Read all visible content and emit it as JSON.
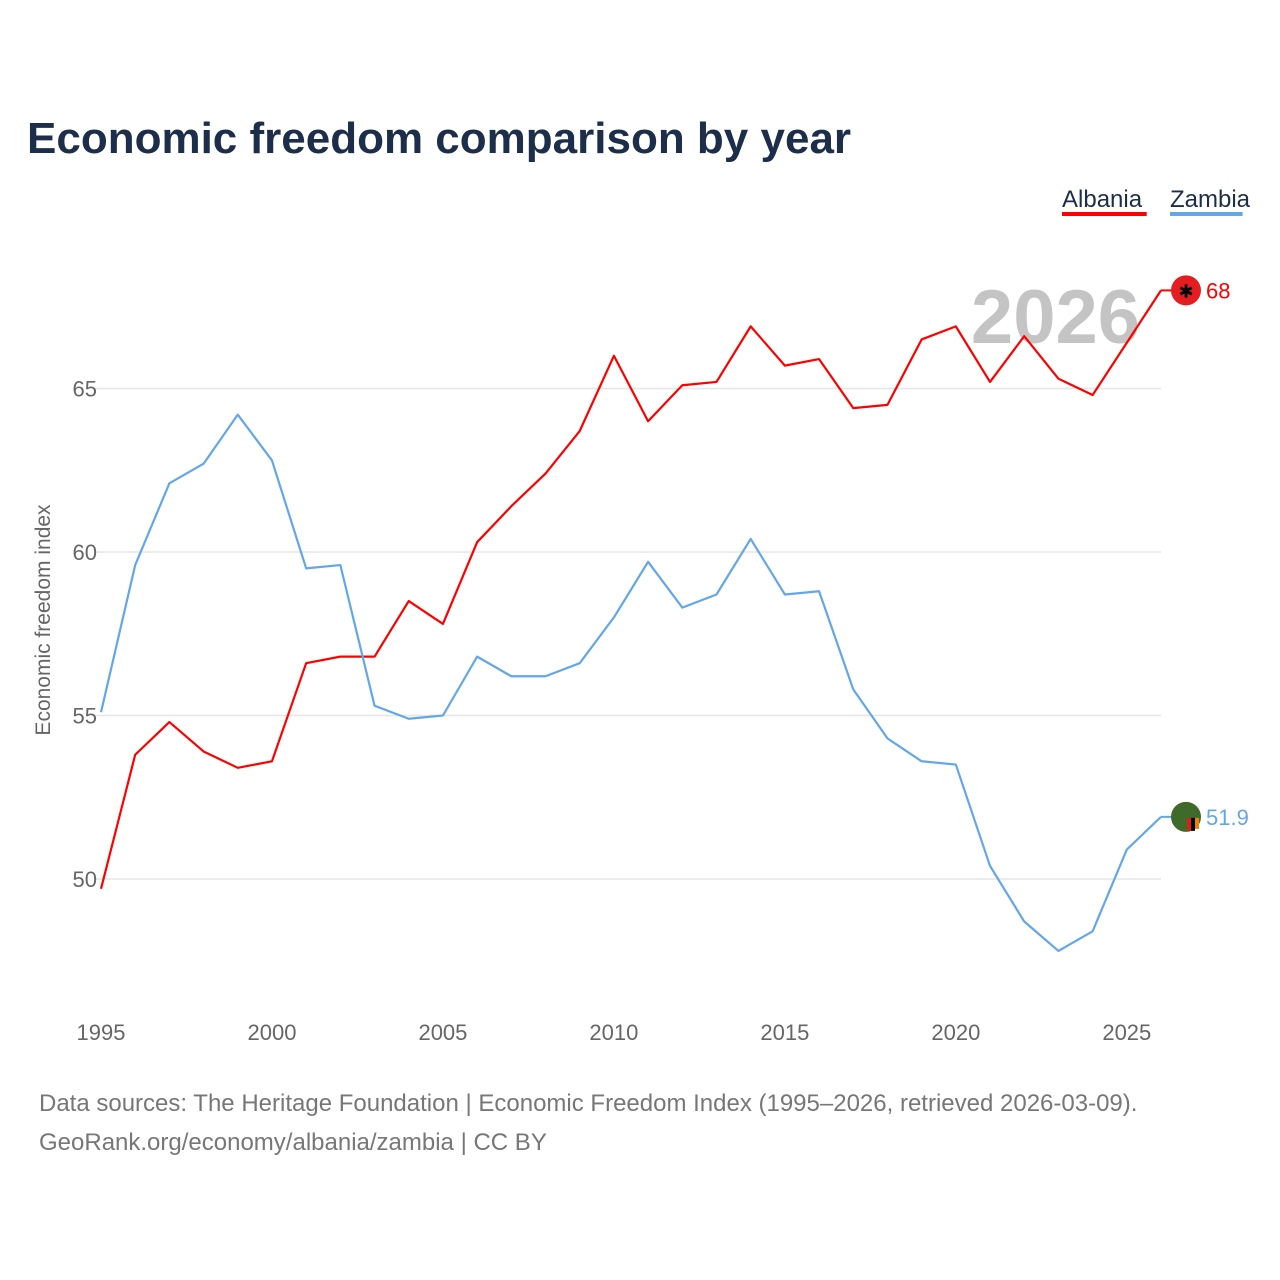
{
  "chart_data": {
    "type": "line",
    "title": "Economic freedom comparison by year",
    "xlabel": "",
    "ylabel": "Economic freedom index",
    "xlim": [
      1995,
      2026
    ],
    "ylim": [
      46.5,
      69.5
    ],
    "x_ticks": [
      1995,
      2000,
      2005,
      2010,
      2015,
      2020,
      2025
    ],
    "y_ticks": [
      50,
      55,
      60,
      65
    ],
    "grid": true,
    "legend_position": "top-right",
    "watermark": "2026",
    "x": [
      1995,
      1996,
      1997,
      1998,
      1999,
      2000,
      2001,
      2002,
      2003,
      2004,
      2005,
      2006,
      2007,
      2008,
      2009,
      2010,
      2011,
      2012,
      2013,
      2014,
      2015,
      2016,
      2017,
      2018,
      2019,
      2020,
      2021,
      2022,
      2023,
      2024,
      2025,
      2026
    ],
    "series": [
      {
        "name": "Albania",
        "color": "#ff0000",
        "end_label": "68",
        "values": [
          49.7,
          53.8,
          54.8,
          53.9,
          53.4,
          53.6,
          56.6,
          56.8,
          56.8,
          58.5,
          57.8,
          60.3,
          61.4,
          62.4,
          63.7,
          66.0,
          64.0,
          65.1,
          65.2,
          66.9,
          65.7,
          65.9,
          64.4,
          64.5,
          66.5,
          66.9,
          65.2,
          66.6,
          65.3,
          64.8,
          66.4,
          68.0
        ]
      },
      {
        "name": "Zambia",
        "color": "#63a7ea",
        "end_label": "51.9",
        "values": [
          55.1,
          59.6,
          62.1,
          62.7,
          64.2,
          62.8,
          59.5,
          59.6,
          55.3,
          54.9,
          55.0,
          56.8,
          56.2,
          56.2,
          56.6,
          58.0,
          59.7,
          58.3,
          58.7,
          60.4,
          58.7,
          58.8,
          55.8,
          54.3,
          53.6,
          53.5,
          50.4,
          48.7,
          47.8,
          48.4,
          50.9,
          51.9
        ]
      }
    ]
  },
  "footer": {
    "line1": "Data sources: The Heritage Foundation | Economic Freedom Index (1995–2026, retrieved 2026-03-09).",
    "line2": "GeoRank.org/economy/albania/zambia | CC BY"
  }
}
